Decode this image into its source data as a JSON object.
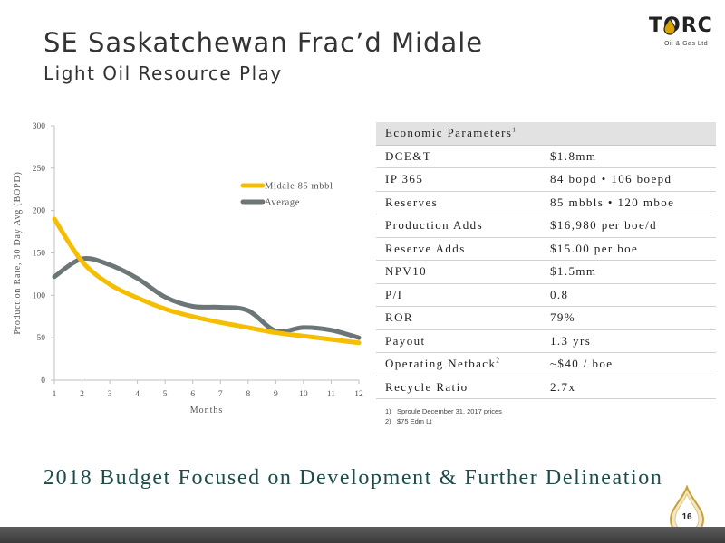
{
  "header": {
    "title": "SE Saskatchewan Frac’d Midale",
    "subtitle": "Light Oil Resource Play"
  },
  "logo": {
    "name": "TORC",
    "tagline": "Oil & Gas Ltd"
  },
  "chart_data": {
    "type": "line",
    "x": [
      1,
      2,
      3,
      4,
      5,
      6,
      7,
      8,
      9,
      10,
      11,
      12
    ],
    "series": [
      {
        "name": "Midale 85 mbbl",
        "color": "#f5be00",
        "values": [
          190,
          140,
          113,
          97,
          84,
          75,
          68,
          62,
          56,
          52,
          48,
          44
        ]
      },
      {
        "name": "Average",
        "color": "#6d7676",
        "values": [
          122,
          143,
          136,
          120,
          98,
          87,
          86,
          82,
          58,
          62,
          59,
          50
        ]
      }
    ],
    "xlabel": "Months",
    "ylabel": "Production Rate, 30 Day Avg (BOPD)",
    "xticks": [
      "1",
      "2",
      "3",
      "4",
      "5",
      "6",
      "7",
      "8",
      "9",
      "10",
      "11",
      "12"
    ],
    "yticks": [
      "0",
      "50",
      "100",
      "150",
      "200",
      "250",
      "300"
    ],
    "xlim": [
      1,
      12
    ],
    "ylim": [
      0,
      300
    ],
    "grid": false,
    "legend": "top-right"
  },
  "params": {
    "header": "Economic Parameters",
    "header_sup": "1",
    "rows": [
      {
        "label": "DCE&T",
        "value": "$1.8mm"
      },
      {
        "label": "IP 365",
        "value": "84 bopd  •  106 boepd"
      },
      {
        "label": "Reserves",
        "value": "85 mbbls • 120 mboe"
      },
      {
        "label": "Production Adds",
        "value": "$16,980 per boe/d"
      },
      {
        "label": "Reserve Adds",
        "value": "$15.00 per boe"
      },
      {
        "label": "NPV10",
        "value": "$1.5mm"
      },
      {
        "label": "P/I",
        "value": "0.8"
      },
      {
        "label": "ROR",
        "value": "79%"
      },
      {
        "label": "Payout",
        "value": "1.3 yrs"
      },
      {
        "label": "Operating Netback",
        "label_sup": "2",
        "value": "~$40 / boe"
      },
      {
        "label": "Recycle Ratio",
        "value": "2.7x"
      }
    ]
  },
  "notes": [
    {
      "num": "1)",
      "text": "Sproule December 31, 2017 prices"
    },
    {
      "num": "2)",
      "text": "$75 Edm Lt"
    }
  ],
  "footer": {
    "headline": "2018 Budget Focused on Development & Further Delineation",
    "page_number": "16"
  },
  "colors": {
    "accent_gold": "#f5be00",
    "average_grey": "#6d7676",
    "headline_teal": "#1d4c4a"
  }
}
